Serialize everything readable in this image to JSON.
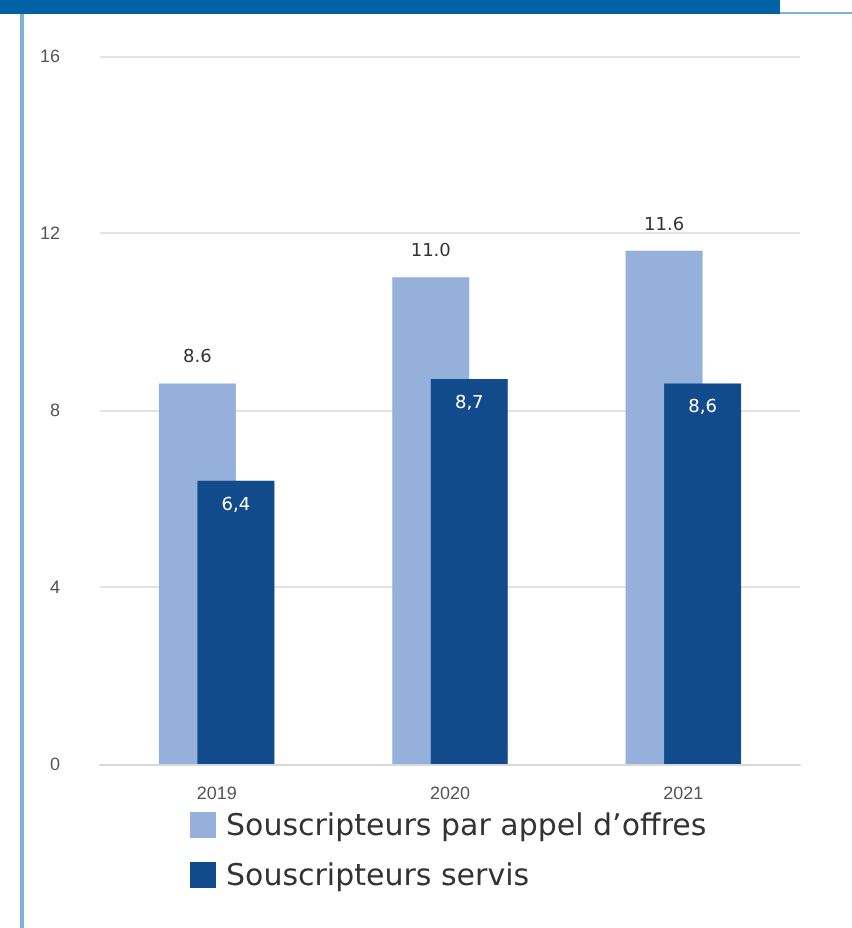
{
  "chart_data": {
    "type": "bar",
    "categories": [
      "2019",
      "2020",
      "2021"
    ],
    "series": [
      {
        "name": "Souscripteurs par appel d’offres",
        "color": "#95b1db",
        "values": [
          8.6,
          11.0,
          11.6
        ],
        "value_labels": [
          "8.6",
          "11.0",
          "11.6"
        ]
      },
      {
        "name": "Souscripteurs servis",
        "color": "#124b8c",
        "values": [
          6.4,
          8.7,
          8.6
        ],
        "value_labels": [
          "6,4",
          "8,7",
          "8,6"
        ]
      }
    ],
    "ylim": [
      0,
      16
    ],
    "yticks": [
      0,
      4,
      8,
      12,
      16
    ],
    "grid": "y",
    "legend": "bottom"
  }
}
